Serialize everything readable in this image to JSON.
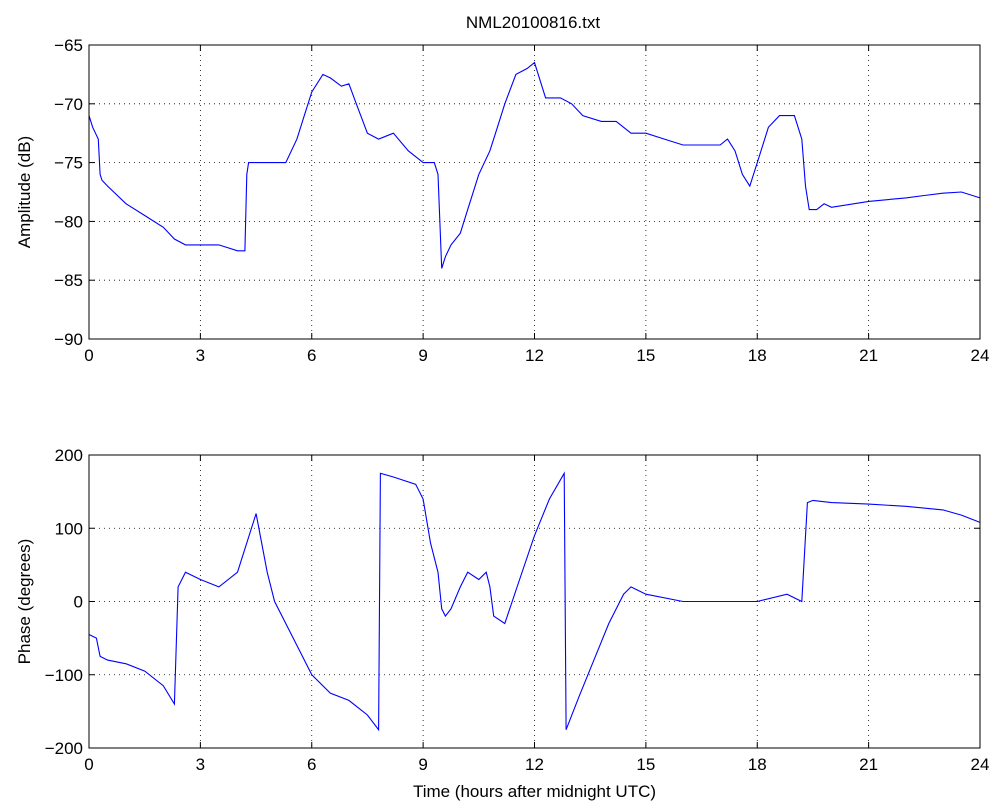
{
  "figure_title": "NML20100816.txt",
  "chart_data": [
    {
      "type": "line",
      "title": "NML20100816.txt",
      "xlabel": "",
      "ylabel": "Amplitude (dB)",
      "xlim": [
        0,
        24
      ],
      "ylim": [
        -90,
        -65
      ],
      "xticks": [
        0,
        3,
        6,
        9,
        12,
        15,
        18,
        21,
        24
      ],
      "yticks": [
        -90,
        -85,
        -80,
        -75,
        -70,
        -65
      ],
      "grid": true,
      "line_color": "#0000ff",
      "series": [
        {
          "x": [
            0,
            0.1,
            0.25,
            0.3,
            0.35,
            0.5,
            1,
            1.5,
            2,
            2.3,
            2.6,
            3,
            3.5,
            4,
            4.2,
            4.25,
            4.3,
            4.8,
            5.3,
            5.6,
            5.8,
            6,
            6.3,
            6.5,
            6.8,
            7,
            7.2,
            7.5,
            7.8,
            8.2,
            8.6,
            9,
            9.3,
            9.4,
            9.5,
            9.6,
            9.75,
            10,
            10.2,
            10.5,
            10.8,
            11,
            11.2,
            11.5,
            11.8,
            12,
            12.3,
            12.7,
            13,
            13.3,
            13.8,
            14.2,
            14.6,
            15,
            15.5,
            16,
            16.5,
            17,
            17.2,
            17.4,
            17.6,
            17.8,
            18,
            18.3,
            18.6,
            19,
            19.2,
            19.3,
            19.4,
            19.6,
            19.8,
            20,
            21,
            22,
            22.5,
            23,
            23.5,
            24
          ],
          "y": [
            -71,
            -72,
            -73,
            -76,
            -76.5,
            -77,
            -78.5,
            -79.5,
            -80.5,
            -81.5,
            -82,
            -82,
            -82,
            -82.5,
            -82.5,
            -76,
            -75,
            -75,
            -75,
            -73,
            -71,
            -69,
            -67.5,
            -67.8,
            -68.5,
            -68.3,
            -70,
            -72.5,
            -73,
            -72.5,
            -74,
            -75,
            -75,
            -76,
            -84,
            -83,
            -82,
            -81,
            -79,
            -76,
            -74,
            -72,
            -70,
            -67.5,
            -67,
            -66.5,
            -69.5,
            -69.5,
            -70,
            -71,
            -71.5,
            -71.5,
            -72.5,
            -72.5,
            -73,
            -73.5,
            -73.5,
            -73.5,
            -73,
            -74,
            -76,
            -77,
            -75,
            -72,
            -71,
            -71,
            -73,
            -77,
            -79,
            -79,
            -78.5,
            -78.8,
            -78.3,
            -78,
            -77.8,
            -77.6,
            -77.5,
            -78
          ]
        }
      ]
    },
    {
      "type": "line",
      "title": "",
      "xlabel": "Time (hours after midnight UTC)",
      "ylabel": "Phase (degrees)",
      "xlim": [
        0,
        24
      ],
      "ylim": [
        -200,
        200
      ],
      "xticks": [
        0,
        3,
        6,
        9,
        12,
        15,
        18,
        21,
        24
      ],
      "yticks": [
        -200,
        -100,
        0,
        100,
        200
      ],
      "grid": true,
      "line_color": "#0000ff",
      "series": [
        {
          "x": [
            0,
            0.2,
            0.3,
            0.5,
            1,
            1.5,
            2,
            2.3,
            2.4,
            2.6,
            3,
            3.5,
            4,
            4.5,
            4.8,
            5,
            5.5,
            6,
            6.5,
            7,
            7.5,
            7.8,
            7.85,
            8.2,
            8.8,
            9,
            9.2,
            9.4,
            9.5,
            9.6,
            9.75,
            10,
            10.2,
            10.5,
            10.7,
            10.8,
            10.9,
            11.2,
            11.6,
            12,
            12.4,
            12.8,
            12.85,
            13.2,
            13.6,
            14,
            14.4,
            14.6,
            15,
            16,
            17,
            18,
            18.8,
            19.2,
            19.35,
            19.5,
            20,
            21,
            22,
            23,
            23.5,
            24
          ],
          "y": [
            -45,
            -50,
            -75,
            -80,
            -85,
            -95,
            -115,
            -140,
            20,
            40,
            30,
            20,
            40,
            120,
            40,
            0,
            -50,
            -100,
            -125,
            -135,
            -155,
            -175,
            175,
            170,
            160,
            140,
            80,
            40,
            -10,
            -20,
            -10,
            20,
            40,
            30,
            40,
            20,
            -20,
            -30,
            30,
            90,
            140,
            175,
            -175,
            -130,
            -80,
            -30,
            10,
            20,
            10,
            0,
            0,
            0,
            10,
            0,
            135,
            138,
            135,
            133,
            130,
            125,
            118,
            108
          ]
        }
      ]
    }
  ]
}
